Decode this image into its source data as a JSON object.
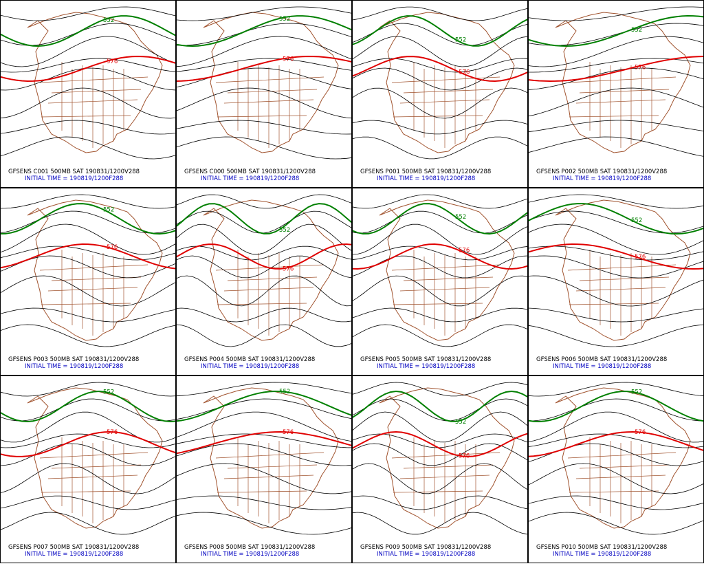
{
  "panels": [
    {
      "title": "GFSENS C001 500MB SAT 190831/1200V288",
      "subtitle": "INITIAL TIME = 190819/1200F288",
      "contour_labels": [
        {
          "text": "552",
          "color": "#008000"
        },
        {
          "text": "576",
          "color": "#e00000"
        }
      ]
    },
    {
      "title": "GFSENS C000 500MB SAT 190831/1200V288",
      "subtitle": "INITIAL TIME = 190819/1200F288",
      "contour_labels": [
        {
          "text": "552",
          "color": "#008000"
        },
        {
          "text": "576",
          "color": "#e00000"
        }
      ]
    },
    {
      "title": "GFSENS P001 500MB SAT 190831/1200V288",
      "subtitle": "INITIAL TIME = 190819/1200F288",
      "contour_labels": [
        {
          "text": "552",
          "color": "#008000"
        },
        {
          "text": "576",
          "color": "#e00000"
        }
      ]
    },
    {
      "title": "GFSENS P002 500MB SAT 190831/1200V288",
      "subtitle": "INITIAL TIME = 190819/1200F288",
      "contour_labels": [
        {
          "text": "552",
          "color": "#008000"
        },
        {
          "text": "576",
          "color": "#e00000"
        }
      ]
    },
    {
      "title": "GFSENS P003 500MB SAT 190831/1200V288",
      "subtitle": "INITIAL TIME = 190819/1200F288",
      "contour_labels": [
        {
          "text": "552",
          "color": "#008000"
        },
        {
          "text": "576",
          "color": "#e00000"
        }
      ]
    },
    {
      "title": "GFSENS P004 500MB SAT 190831/1200V288",
      "subtitle": "INITIAL TIME = 190819/1200F288",
      "contour_labels": [
        {
          "text": "552",
          "color": "#008000"
        },
        {
          "text": "576",
          "color": "#e00000"
        }
      ]
    },
    {
      "title": "GFSENS P005 500MB SAT 190831/1200V288",
      "subtitle": "INITIAL TIME = 190819/1200F288",
      "contour_labels": [
        {
          "text": "552",
          "color": "#008000"
        },
        {
          "text": "576",
          "color": "#e00000"
        }
      ]
    },
    {
      "title": "GFSENS P006 500MB SAT 190831/1200V288",
      "subtitle": "INITIAL TIME = 190819/1200F288",
      "contour_labels": [
        {
          "text": "552",
          "color": "#008000"
        },
        {
          "text": "576",
          "color": "#e00000"
        }
      ]
    },
    {
      "title": "GFSENS P007 500MB SAT 190831/1200V288",
      "subtitle": "INITIAL TIME = 190819/1200F288",
      "contour_labels": [
        {
          "text": "552",
          "color": "#008000"
        },
        {
          "text": "576",
          "color": "#e00000"
        }
      ]
    },
    {
      "title": "GFSENS P008 500MB SAT 190831/1200V288",
      "subtitle": "INITIAL TIME = 190819/1200F288",
      "contour_labels": [
        {
          "text": "552",
          "color": "#008000"
        },
        {
          "text": "576",
          "color": "#e00000"
        }
      ]
    },
    {
      "title": "GFSENS P009 500MB SAT 190831/1200V288",
      "subtitle": "INITIAL TIME = 190819/1200F288",
      "contour_labels": [
        {
          "text": "552",
          "color": "#008000"
        },
        {
          "text": "576",
          "color": "#e00000"
        }
      ]
    },
    {
      "title": "GFSENS P010 500MB SAT 190831/1200V288",
      "subtitle": "INITIAL TIME = 190819/1200F288",
      "contour_labels": [
        {
          "text": "552",
          "color": "#008000"
        },
        {
          "text": "576",
          "color": "#e00000"
        }
      ]
    }
  ]
}
